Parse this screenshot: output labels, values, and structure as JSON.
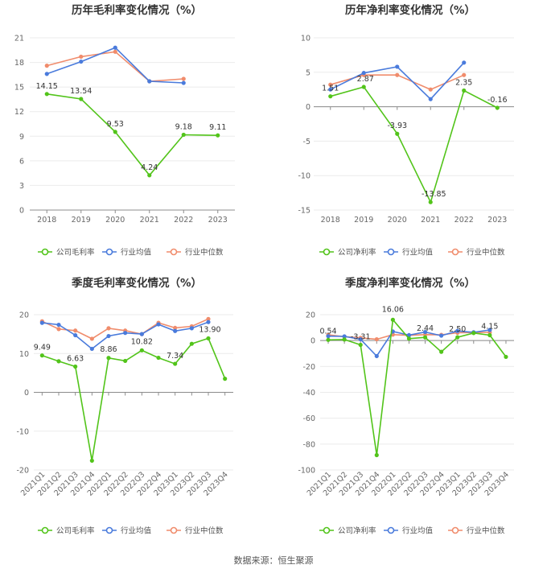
{
  "footer": {
    "label": "数据来源：",
    "source": "恒生聚源"
  },
  "chart_data": [
    {
      "type": "line",
      "title": "历年毛利率变化情况（%）",
      "categories": [
        "2018",
        "2019",
        "2020",
        "2021",
        "2022",
        "2023"
      ],
      "ylim": [
        0,
        21
      ],
      "yticks": [
        0,
        3,
        6,
        9,
        12,
        15,
        18,
        21
      ],
      "legend_position": "bottom",
      "series": [
        {
          "name": "公司毛利率",
          "color": "#52c41a",
          "values": [
            14.15,
            13.54,
            9.53,
            4.24,
            9.18,
            9.11
          ],
          "labels": [
            "14.15",
            "13.54",
            "9.53",
            "4.24",
            "9.18",
            "9.11"
          ]
        },
        {
          "name": "行业均值",
          "color": "#4a7bdc",
          "values": [
            16.6,
            18.1,
            19.8,
            15.7,
            15.5,
            null
          ]
        },
        {
          "name": "行业中位数",
          "color": "#f08c6c",
          "values": [
            17.6,
            18.7,
            19.3,
            15.7,
            16.0,
            null
          ]
        }
      ]
    },
    {
      "type": "line",
      "title": "历年净利率变化情况（%）",
      "categories": [
        "2018",
        "2019",
        "2020",
        "2021",
        "2022",
        "2023"
      ],
      "ylim": [
        -15,
        10
      ],
      "yticks": [
        -15,
        -10,
        -5,
        0,
        5,
        10
      ],
      "legend_position": "bottom",
      "series": [
        {
          "name": "公司净利率",
          "color": "#52c41a",
          "values": [
            1.51,
            2.87,
            -3.93,
            -13.85,
            2.35,
            -0.16
          ],
          "labels": [
            "1.51",
            "2.87",
            "-3.93",
            "-13.85",
            "2.35",
            "-0.16"
          ]
        },
        {
          "name": "行业均值",
          "color": "#4a7bdc",
          "values": [
            2.5,
            4.9,
            5.8,
            1.1,
            6.4,
            null
          ]
        },
        {
          "name": "行业中位数",
          "color": "#f08c6c",
          "values": [
            3.2,
            4.6,
            4.6,
            2.5,
            4.6,
            null
          ]
        }
      ]
    },
    {
      "type": "line",
      "title": "季度毛利率变化情况（%）",
      "categories": [
        "2021Q1",
        "2021Q2",
        "2021Q3",
        "2021Q4",
        "2022Q1",
        "2022Q2",
        "2022Q3",
        "2022Q4",
        "2023Q1",
        "2023Q2",
        "2023Q3",
        "2023Q4"
      ],
      "ylim": [
        -20,
        20
      ],
      "yticks": [
        -20,
        -10,
        0,
        10,
        20
      ],
      "legend_position": "bottom",
      "series": [
        {
          "name": "公司毛利率",
          "color": "#52c41a",
          "values": [
            9.49,
            8.0,
            6.63,
            -17.6,
            8.86,
            8.1,
            10.82,
            8.9,
            7.34,
            12.5,
            13.9,
            3.5
          ],
          "labels": [
            "9.49",
            "",
            "6.63",
            "",
            "8.86",
            "",
            "10.82",
            "",
            "7.34",
            "",
            "13.90",
            ""
          ]
        },
        {
          "name": "行业均值",
          "color": "#4a7bdc",
          "values": [
            17.9,
            17.4,
            14.7,
            11.2,
            14.5,
            15.3,
            15.0,
            17.5,
            15.8,
            16.5,
            18.1,
            null
          ]
        },
        {
          "name": "行业中位数",
          "color": "#f08c6c",
          "values": [
            18.3,
            16.3,
            15.9,
            13.8,
            16.5,
            15.9,
            15.0,
            17.9,
            16.6,
            17.0,
            18.9,
            null
          ]
        }
      ]
    },
    {
      "type": "line",
      "title": "季度净利率变化情况（%）",
      "categories": [
        "2021Q1",
        "2021Q2",
        "2021Q3",
        "2021Q4",
        "2022Q1",
        "2022Q2",
        "2022Q3",
        "2022Q4",
        "2023Q1",
        "2023Q2",
        "2023Q3",
        "2023Q4"
      ],
      "ylim": [
        -100,
        20
      ],
      "yticks": [
        -100,
        -80,
        -60,
        -40,
        -20,
        0,
        20
      ],
      "legend_position": "bottom",
      "series": [
        {
          "name": "公司净利率",
          "color": "#52c41a",
          "values": [
            0.54,
            0.8,
            -3.31,
            -88.5,
            16.06,
            1.5,
            2.44,
            -8.7,
            2.5,
            5.8,
            4.15,
            -12.6
          ],
          "labels": [
            "0.54",
            "",
            "-3.31",
            "",
            "16.06",
            "",
            "2.44",
            "",
            "2.50",
            "",
            "4.15",
            ""
          ]
        },
        {
          "name": "行业均值",
          "color": "#4a7bdc",
          "values": [
            3.4,
            3.2,
            1.0,
            -12.0,
            7.0,
            4.2,
            6.6,
            3.8,
            7.4,
            6.4,
            8.2,
            null
          ]
        },
        {
          "name": "行业中位数",
          "color": "#f08c6c",
          "values": [
            4.4,
            3.0,
            2.1,
            1.0,
            4.6,
            4.0,
            4.6,
            4.4,
            6.0,
            6.2,
            6.3,
            null
          ]
        }
      ]
    }
  ]
}
